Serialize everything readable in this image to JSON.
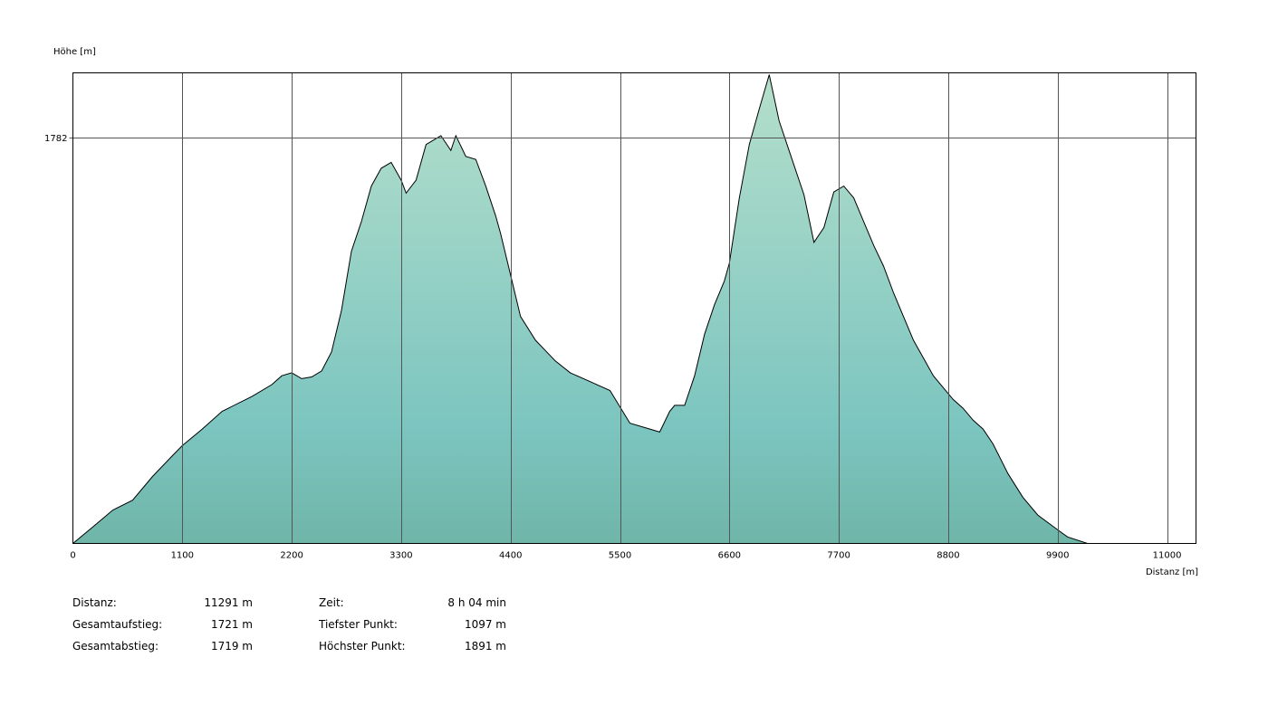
{
  "chart_data": {
    "type": "area",
    "ylabel": "Höhe [m]",
    "xlabel": "Distanz [m]",
    "xlim": [
      0,
      11291
    ],
    "ylim": [
      1097,
      1891
    ],
    "x_ticks": [
      0,
      1100,
      2200,
      3300,
      4400,
      5500,
      6600,
      7700,
      8800,
      9900,
      11000
    ],
    "y_ticks": [
      1782
    ],
    "grid": true,
    "fill_colors": [
      "#b5dfcb",
      "#7cc5c0",
      "#6fb5a8"
    ],
    "line_color": "#000000",
    "x": [
      0,
      200,
      400,
      600,
      800,
      1000,
      1100,
      1300,
      1500,
      1800,
      2000,
      2100,
      2200,
      2300,
      2400,
      2500,
      2600,
      2700,
      2800,
      2900,
      3000,
      3100,
      3200,
      3300,
      3350,
      3450,
      3550,
      3700,
      3800,
      3850,
      3950,
      4050,
      4150,
      4250,
      4300,
      4400,
      4500,
      4650,
      4850,
      5000,
      5200,
      5400,
      5600,
      5800,
      5900,
      6000,
      6050,
      6150,
      6250,
      6350,
      6450,
      6550,
      6600,
      6700,
      6800,
      6900,
      7000,
      7100,
      7200,
      7300,
      7350,
      7450,
      7550,
      7650,
      7750,
      7850,
      7950,
      8050,
      8150,
      8250,
      8350,
      8450,
      8550,
      8650,
      8750,
      8850,
      8950,
      9050,
      9150,
      9250,
      9400,
      9550,
      9700,
      9900,
      10000,
      10200,
      10400,
      10600,
      10800,
      11000,
      11200,
      11291
    ],
    "elevation": [
      1097,
      1125,
      1153,
      1170,
      1210,
      1245,
      1262,
      1290,
      1320,
      1345,
      1365,
      1380,
      1385,
      1375,
      1378,
      1388,
      1420,
      1490,
      1590,
      1640,
      1700,
      1730,
      1740,
      1710,
      1688,
      1710,
      1770,
      1785,
      1760,
      1785,
      1750,
      1745,
      1700,
      1650,
      1620,
      1550,
      1480,
      1440,
      1405,
      1385,
      1370,
      1355,
      1300,
      1290,
      1285,
      1320,
      1330,
      1330,
      1380,
      1450,
      1500,
      1540,
      1570,
      1680,
      1770,
      1830,
      1888,
      1810,
      1760,
      1710,
      1685,
      1605,
      1630,
      1690,
      1700,
      1680,
      1640,
      1600,
      1565,
      1520,
      1480,
      1440,
      1410,
      1380,
      1360,
      1340,
      1325,
      1305,
      1290,
      1265,
      1215,
      1175,
      1145,
      1120,
      1108,
      1097,
      1097,
      1097,
      1097,
      1097,
      1097,
      1097
    ]
  },
  "stats": {
    "left": [
      {
        "label": "Distanz:",
        "value": "11291 m"
      },
      {
        "label": "Gesamtaufstieg:",
        "value": "1721 m"
      },
      {
        "label": "Gesamtabstieg:",
        "value": "1719 m"
      }
    ],
    "right": [
      {
        "label": "Zeit:",
        "value": "8 h 04 min"
      },
      {
        "label": "Tiefster Punkt:",
        "value": "1097 m"
      },
      {
        "label": "Höchster Punkt:",
        "value": "1891 m"
      }
    ]
  }
}
